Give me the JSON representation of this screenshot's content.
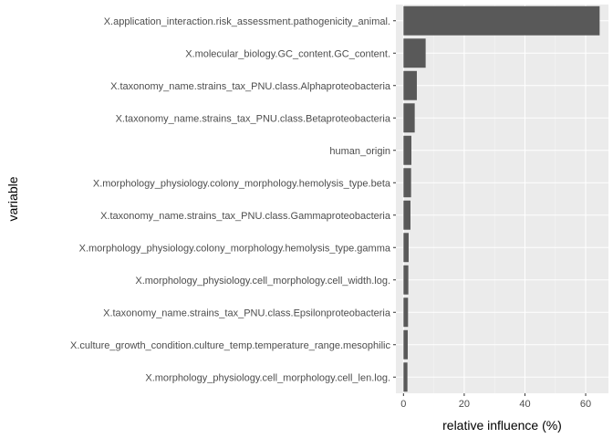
{
  "chart_data": {
    "type": "bar",
    "orientation": "horizontal",
    "xlabel": "relative influence (%)",
    "ylabel": "variable",
    "xlim": [
      -2.5,
      67.5
    ],
    "xticks": [
      0,
      20,
      40,
      60
    ],
    "grid": true,
    "colors": {
      "bar": "#595959",
      "panel": "#ebebeb",
      "grid_major": "#ffffff",
      "grid_minor": "#f4f4f4",
      "tick_text": "#4d4d4d"
    },
    "categories": [
      "X.application_interaction.risk_assessment.pathogenicity_animal.",
      "X.molecular_biology.GC_content.GC_content.",
      "X.taxonomy_name.strains_tax_PNU.class.Alphaproteobacteria",
      "X.taxonomy_name.strains_tax_PNU.class.Betaproteobacteria",
      "human_origin",
      "X.morphology_physiology.colony_morphology.hemolysis_type.beta",
      "X.taxonomy_name.strains_tax_PNU.class.Gammaproteobacteria",
      "X.morphology_physiology.colony_morphology.hemolysis_type.gamma",
      "X.morphology_physiology.cell_morphology.cell_width.log.",
      "X.taxonomy_name.strains_tax_PNU.class.Epsilonproteobacteria",
      "X.culture_growth_condition.culture_temp.temperature_range.mesophilic",
      "X.morphology_physiology.cell_morphology.cell_len.log."
    ],
    "values": [
      64.6,
      7.3,
      4.4,
      3.7,
      2.6,
      2.5,
      2.3,
      1.7,
      1.6,
      1.5,
      1.4,
      1.3
    ]
  }
}
